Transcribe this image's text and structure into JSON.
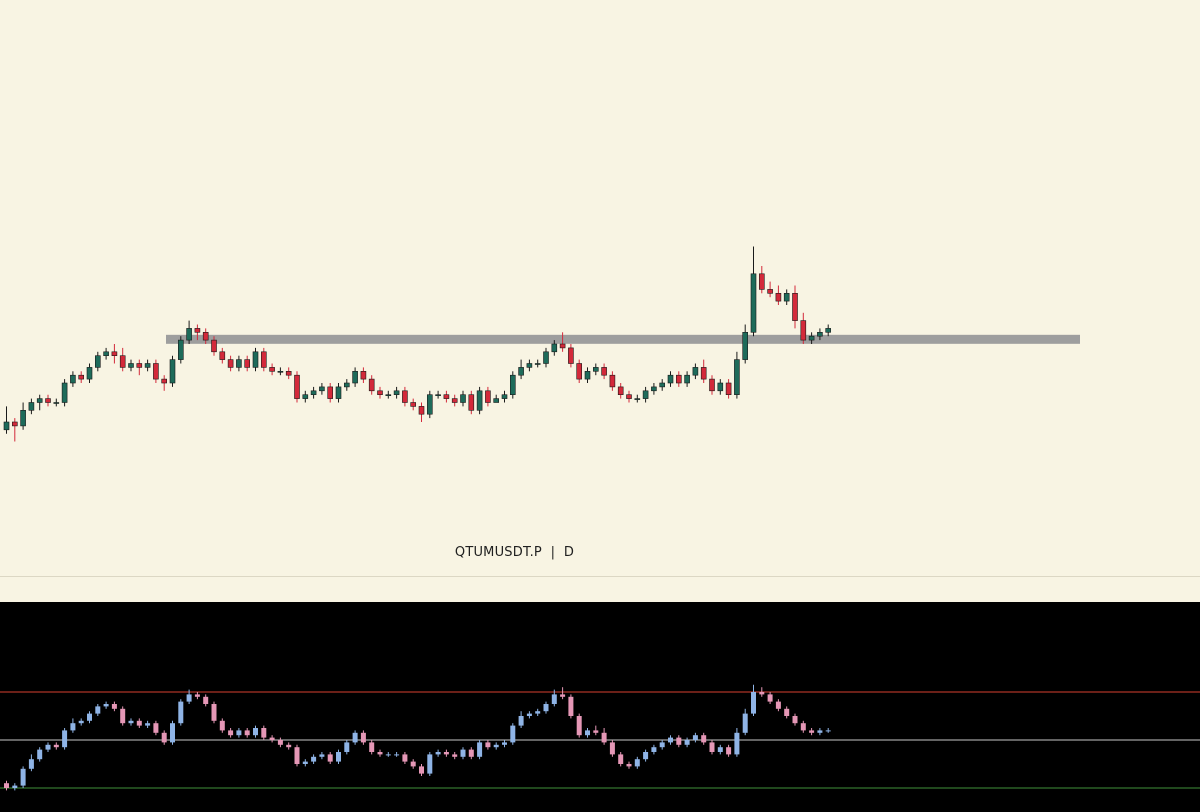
{
  "symbol": "QTUMUSDT.P",
  "interval": "D",
  "colors": {
    "background": "#f8f4e3",
    "bull": "#1e6b5a",
    "bear": "#d3293a",
    "level": "#9e9e9e",
    "osc_background": "#000000",
    "osc_up": "#8fb4e6",
    "osc_down": "#e597b6",
    "osc_overbought": "#d9412f",
    "osc_mid": "#c9c9c9",
    "osc_oversold": "#3f8f3a"
  },
  "chart_data": [
    {
      "type": "candlestick",
      "title": "QTUMUSDT.P | D",
      "y_unit": "pixel-relative price",
      "ylim": [
        0,
        100
      ],
      "level": {
        "value": 61.2
      },
      "candles": [
        [
          38,
          40,
          44,
          37
        ],
        [
          40,
          39,
          41,
          35
        ],
        [
          39,
          43,
          45,
          38
        ],
        [
          43,
          45,
          46,
          42
        ],
        [
          45,
          46,
          47,
          43
        ],
        [
          46,
          45,
          47,
          44
        ],
        [
          45,
          45,
          46,
          44
        ],
        [
          45,
          50,
          51,
          44
        ],
        [
          50,
          52,
          53,
          49
        ],
        [
          52,
          51,
          53,
          50
        ],
        [
          51,
          54,
          55,
          50
        ],
        [
          54,
          57,
          58,
          53
        ],
        [
          57,
          58,
          59,
          56
        ],
        [
          58,
          57,
          60,
          55
        ],
        [
          57,
          54,
          59,
          53
        ],
        [
          54,
          55,
          56,
          53
        ],
        [
          55,
          54,
          56,
          52
        ],
        [
          54,
          55,
          56,
          53
        ],
        [
          55,
          51,
          56,
          50
        ],
        [
          51,
          50,
          52,
          48
        ],
        [
          50,
          56,
          57,
          49
        ],
        [
          56,
          61,
          62,
          55
        ],
        [
          61,
          64,
          66,
          60
        ],
        [
          64,
          63,
          65,
          61
        ],
        [
          63,
          61,
          64,
          60
        ],
        [
          61,
          58,
          62,
          57
        ],
        [
          58,
          56,
          59,
          55
        ],
        [
          56,
          54,
          57,
          53
        ],
        [
          54,
          56,
          57,
          53
        ],
        [
          56,
          54,
          57,
          53
        ],
        [
          54,
          58,
          59,
          53
        ],
        [
          58,
          54,
          59,
          53
        ],
        [
          54,
          53,
          55,
          52
        ],
        [
          53,
          53,
          54,
          52
        ],
        [
          53,
          52,
          54,
          51
        ],
        [
          52,
          46,
          53,
          45
        ],
        [
          46,
          47,
          48,
          45
        ],
        [
          47,
          48,
          49,
          46
        ],
        [
          48,
          49,
          50,
          47
        ],
        [
          49,
          46,
          50,
          45
        ],
        [
          46,
          49,
          50,
          45
        ],
        [
          49,
          50,
          51,
          48
        ],
        [
          50,
          53,
          54,
          49
        ],
        [
          53,
          51,
          54,
          50
        ],
        [
          51,
          48,
          52,
          47
        ],
        [
          48,
          47,
          49,
          46
        ],
        [
          47,
          47,
          48,
          46
        ],
        [
          47,
          48,
          49,
          46
        ],
        [
          48,
          45,
          49,
          44
        ],
        [
          45,
          44,
          46,
          43
        ],
        [
          44,
          42,
          45,
          40
        ],
        [
          42,
          47,
          48,
          41
        ],
        [
          47,
          47,
          48,
          46
        ],
        [
          47,
          46,
          48,
          45
        ],
        [
          46,
          45,
          47,
          44
        ],
        [
          45,
          47,
          48,
          44
        ],
        [
          47,
          43,
          48,
          42
        ],
        [
          43,
          48,
          49,
          42
        ],
        [
          48,
          45,
          49,
          44
        ],
        [
          45,
          46,
          47,
          45
        ],
        [
          46,
          47,
          48,
          45
        ],
        [
          47,
          52,
          53,
          46
        ],
        [
          52,
          54,
          56,
          51
        ],
        [
          54,
          55,
          56,
          53
        ],
        [
          55,
          55,
          56,
          54
        ],
        [
          55,
          58,
          59,
          54
        ],
        [
          58,
          60,
          61,
          57
        ],
        [
          60,
          59,
          63,
          58
        ],
        [
          59,
          55,
          60,
          54
        ],
        [
          55,
          51,
          56,
          50
        ],
        [
          51,
          53,
          54,
          50
        ],
        [
          53,
          54,
          55,
          52
        ],
        [
          54,
          52,
          55,
          51
        ],
        [
          52,
          49,
          53,
          48
        ],
        [
          49,
          47,
          50,
          46
        ],
        [
          47,
          46,
          48,
          45
        ],
        [
          46,
          46,
          47,
          45
        ],
        [
          46,
          48,
          49,
          45
        ],
        [
          48,
          49,
          50,
          47
        ],
        [
          49,
          50,
          51,
          48
        ],
        [
          50,
          52,
          53,
          49
        ],
        [
          52,
          50,
          53,
          49
        ],
        [
          50,
          52,
          53,
          49
        ],
        [
          52,
          54,
          55,
          51
        ],
        [
          54,
          51,
          56,
          50
        ],
        [
          51,
          48,
          52,
          47
        ],
        [
          48,
          50,
          51,
          47
        ],
        [
          50,
          47,
          51,
          46
        ],
        [
          47,
          56,
          58,
          46
        ],
        [
          56,
          63,
          65,
          55
        ],
        [
          63,
          78,
          85,
          62
        ],
        [
          78,
          74,
          80,
          73
        ],
        [
          74,
          73,
          76,
          72
        ],
        [
          73,
          71,
          75,
          70
        ],
        [
          71,
          73,
          74,
          70
        ],
        [
          73,
          66,
          75,
          64
        ],
        [
          66,
          61,
          68,
          60
        ],
        [
          61,
          62,
          63,
          60
        ],
        [
          62,
          63,
          64,
          61
        ],
        [
          63,
          64,
          65,
          62
        ]
      ]
    },
    {
      "type": "oscillator",
      "ylim": [
        0,
        100
      ],
      "levels": {
        "overbought": 70,
        "mid": 50,
        "oversold": 30
      },
      "candles": [
        [
          32,
          30,
          33,
          29
        ],
        [
          30,
          31,
          32,
          29
        ],
        [
          31,
          38,
          39,
          30
        ],
        [
          38,
          42,
          44,
          37
        ],
        [
          42,
          46,
          47,
          41
        ],
        [
          46,
          48,
          49,
          45
        ],
        [
          48,
          47,
          49,
          46
        ],
        [
          47,
          54,
          55,
          46
        ],
        [
          54,
          57,
          59,
          53
        ],
        [
          57,
          58,
          59,
          56
        ],
        [
          58,
          61,
          62,
          57
        ],
        [
          61,
          64,
          65,
          60
        ],
        [
          64,
          65,
          66,
          63
        ],
        [
          65,
          63,
          66,
          62
        ],
        [
          63,
          57,
          64,
          56
        ],
        [
          57,
          58,
          59,
          56
        ],
        [
          58,
          56,
          59,
          55
        ],
        [
          56,
          57,
          58,
          55
        ],
        [
          57,
          53,
          58,
          52
        ],
        [
          53,
          49,
          54,
          48
        ],
        [
          49,
          57,
          58,
          48
        ],
        [
          57,
          66,
          67,
          56
        ],
        [
          66,
          69,
          71,
          65
        ],
        [
          69,
          68,
          70,
          67
        ],
        [
          68,
          65,
          69,
          64
        ],
        [
          65,
          58,
          66,
          57
        ],
        [
          58,
          54,
          59,
          53
        ],
        [
          54,
          52,
          55,
          51
        ],
        [
          52,
          54,
          55,
          51
        ],
        [
          54,
          52,
          55,
          51
        ],
        [
          52,
          55,
          56,
          51
        ],
        [
          55,
          51,
          56,
          50
        ],
        [
          51,
          50,
          52,
          49
        ],
        [
          50,
          48,
          51,
          47
        ],
        [
          48,
          47,
          49,
          46
        ],
        [
          47,
          40,
          48,
          39
        ],
        [
          40,
          41,
          42,
          39
        ],
        [
          41,
          43,
          44,
          40
        ],
        [
          43,
          44,
          45,
          42
        ],
        [
          44,
          41,
          45,
          40
        ],
        [
          41,
          45,
          46,
          40
        ],
        [
          45,
          49,
          50,
          44
        ],
        [
          49,
          53,
          54,
          48
        ],
        [
          53,
          49,
          54,
          48
        ],
        [
          49,
          45,
          50,
          44
        ],
        [
          45,
          44,
          46,
          43
        ],
        [
          44,
          44,
          45,
          43
        ],
        [
          44,
          44,
          45,
          43
        ],
        [
          44,
          41,
          45,
          40
        ],
        [
          41,
          39,
          42,
          38
        ],
        [
          39,
          36,
          40,
          35
        ],
        [
          36,
          44,
          45,
          35
        ],
        [
          44,
          45,
          46,
          43
        ],
        [
          45,
          44,
          46,
          43
        ],
        [
          44,
          43,
          45,
          42
        ],
        [
          43,
          46,
          47,
          42
        ],
        [
          46,
          43,
          47,
          42
        ],
        [
          43,
          49,
          50,
          42
        ],
        [
          49,
          47,
          50,
          46
        ],
        [
          47,
          48,
          49,
          46
        ],
        [
          48,
          49,
          50,
          47
        ],
        [
          49,
          56,
          57,
          48
        ],
        [
          56,
          60,
          62,
          55
        ],
        [
          60,
          61,
          62,
          59
        ],
        [
          61,
          62,
          63,
          60
        ],
        [
          62,
          65,
          66,
          61
        ],
        [
          65,
          69,
          71,
          64
        ],
        [
          69,
          68,
          72,
          67
        ],
        [
          68,
          60,
          69,
          59
        ],
        [
          60,
          52,
          61,
          51
        ],
        [
          52,
          54,
          55,
          51
        ],
        [
          54,
          53,
          56,
          52
        ],
        [
          53,
          49,
          55,
          48
        ],
        [
          49,
          44,
          50,
          43
        ],
        [
          44,
          40,
          45,
          39
        ],
        [
          40,
          39,
          41,
          38
        ],
        [
          39,
          42,
          43,
          38
        ],
        [
          42,
          45,
          46,
          41
        ],
        [
          45,
          47,
          48,
          44
        ],
        [
          47,
          49,
          50,
          46
        ],
        [
          49,
          51,
          52,
          48
        ],
        [
          51,
          48,
          52,
          47
        ],
        [
          48,
          50,
          51,
          47
        ],
        [
          50,
          52,
          53,
          49
        ],
        [
          52,
          49,
          53,
          48
        ],
        [
          49,
          45,
          50,
          44
        ],
        [
          45,
          47,
          48,
          44
        ],
        [
          47,
          44,
          48,
          43
        ],
        [
          44,
          53,
          55,
          43
        ],
        [
          53,
          61,
          63,
          52
        ],
        [
          61,
          70,
          73,
          60
        ],
        [
          70,
          69,
          72,
          68
        ],
        [
          69,
          66,
          70,
          65
        ],
        [
          66,
          63,
          67,
          62
        ],
        [
          63,
          60,
          64,
          59
        ],
        [
          60,
          57,
          61,
          56
        ],
        [
          57,
          54,
          58,
          53
        ],
        [
          54,
          53,
          55,
          52
        ],
        [
          53,
          54,
          55,
          52
        ],
        [
          54,
          54,
          55,
          53
        ]
      ]
    }
  ]
}
